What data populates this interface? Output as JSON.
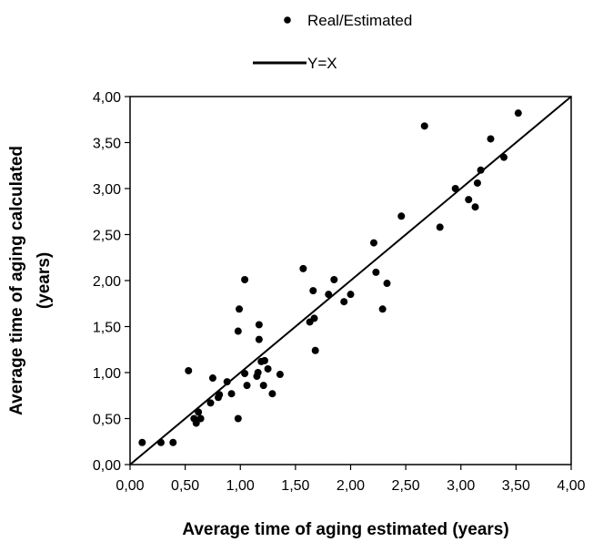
{
  "chart_data": {
    "type": "scatter",
    "title": "",
    "xlabel": "Average time of aging estimated (years)",
    "ylabel_line1": "Average time of aging calculated",
    "ylabel_line2": "(years)",
    "xlim": [
      0,
      4
    ],
    "ylim": [
      0,
      4
    ],
    "grid": false,
    "legend_placement": "top-center",
    "x_tick_labels": [
      "0,00",
      "0,50",
      "1,00",
      "1,50",
      "2,00",
      "2,50",
      "3,00",
      "3,50",
      "4,00"
    ],
    "y_tick_labels": [
      "0,00",
      "0,50",
      "1,00",
      "1,50",
      "2,00",
      "2,50",
      "3,00",
      "3,50",
      "4,00"
    ],
    "series": [
      {
        "name": "Real/Estimated",
        "kind": "points",
        "color": "#000000",
        "points": [
          [
            0.11,
            0.24
          ],
          [
            0.28,
            0.24
          ],
          [
            0.39,
            0.24
          ],
          [
            0.53,
            1.02
          ],
          [
            0.58,
            0.5
          ],
          [
            0.6,
            0.45
          ],
          [
            0.62,
            0.57
          ],
          [
            0.64,
            0.5
          ],
          [
            0.73,
            0.67
          ],
          [
            0.75,
            0.94
          ],
          [
            0.8,
            0.73
          ],
          [
            0.81,
            0.76
          ],
          [
            0.88,
            0.9
          ],
          [
            0.92,
            0.77
          ],
          [
            0.98,
            0.5
          ],
          [
            0.98,
            1.45
          ],
          [
            0.99,
            1.69
          ],
          [
            1.04,
            0.99
          ],
          [
            1.04,
            2.01
          ],
          [
            1.06,
            0.86
          ],
          [
            1.15,
            0.96
          ],
          [
            1.16,
            1.0
          ],
          [
            1.17,
            1.52
          ],
          [
            1.17,
            1.36
          ],
          [
            1.19,
            1.12
          ],
          [
            1.21,
            0.86
          ],
          [
            1.22,
            1.13
          ],
          [
            1.25,
            1.04
          ],
          [
            1.29,
            0.77
          ],
          [
            1.36,
            0.98
          ],
          [
            1.57,
            2.13
          ],
          [
            1.63,
            1.55
          ],
          [
            1.66,
            1.89
          ],
          [
            1.67,
            1.59
          ],
          [
            1.68,
            1.24
          ],
          [
            1.8,
            1.85
          ],
          [
            1.85,
            2.01
          ],
          [
            1.94,
            1.77
          ],
          [
            2.0,
            1.85
          ],
          [
            2.21,
            2.41
          ],
          [
            2.23,
            2.09
          ],
          [
            2.29,
            1.69
          ],
          [
            2.33,
            1.97
          ],
          [
            2.46,
            2.7
          ],
          [
            2.67,
            3.68
          ],
          [
            2.81,
            2.58
          ],
          [
            2.95,
            3.0
          ],
          [
            3.07,
            2.88
          ],
          [
            3.13,
            2.8
          ],
          [
            3.15,
            3.06
          ],
          [
            3.18,
            3.2
          ],
          [
            3.27,
            3.54
          ],
          [
            3.39,
            3.34
          ],
          [
            3.52,
            3.82
          ]
        ]
      },
      {
        "name": "Y=X",
        "kind": "line",
        "color": "#000000",
        "points": [
          [
            0,
            0
          ],
          [
            4,
            4
          ]
        ]
      }
    ]
  }
}
